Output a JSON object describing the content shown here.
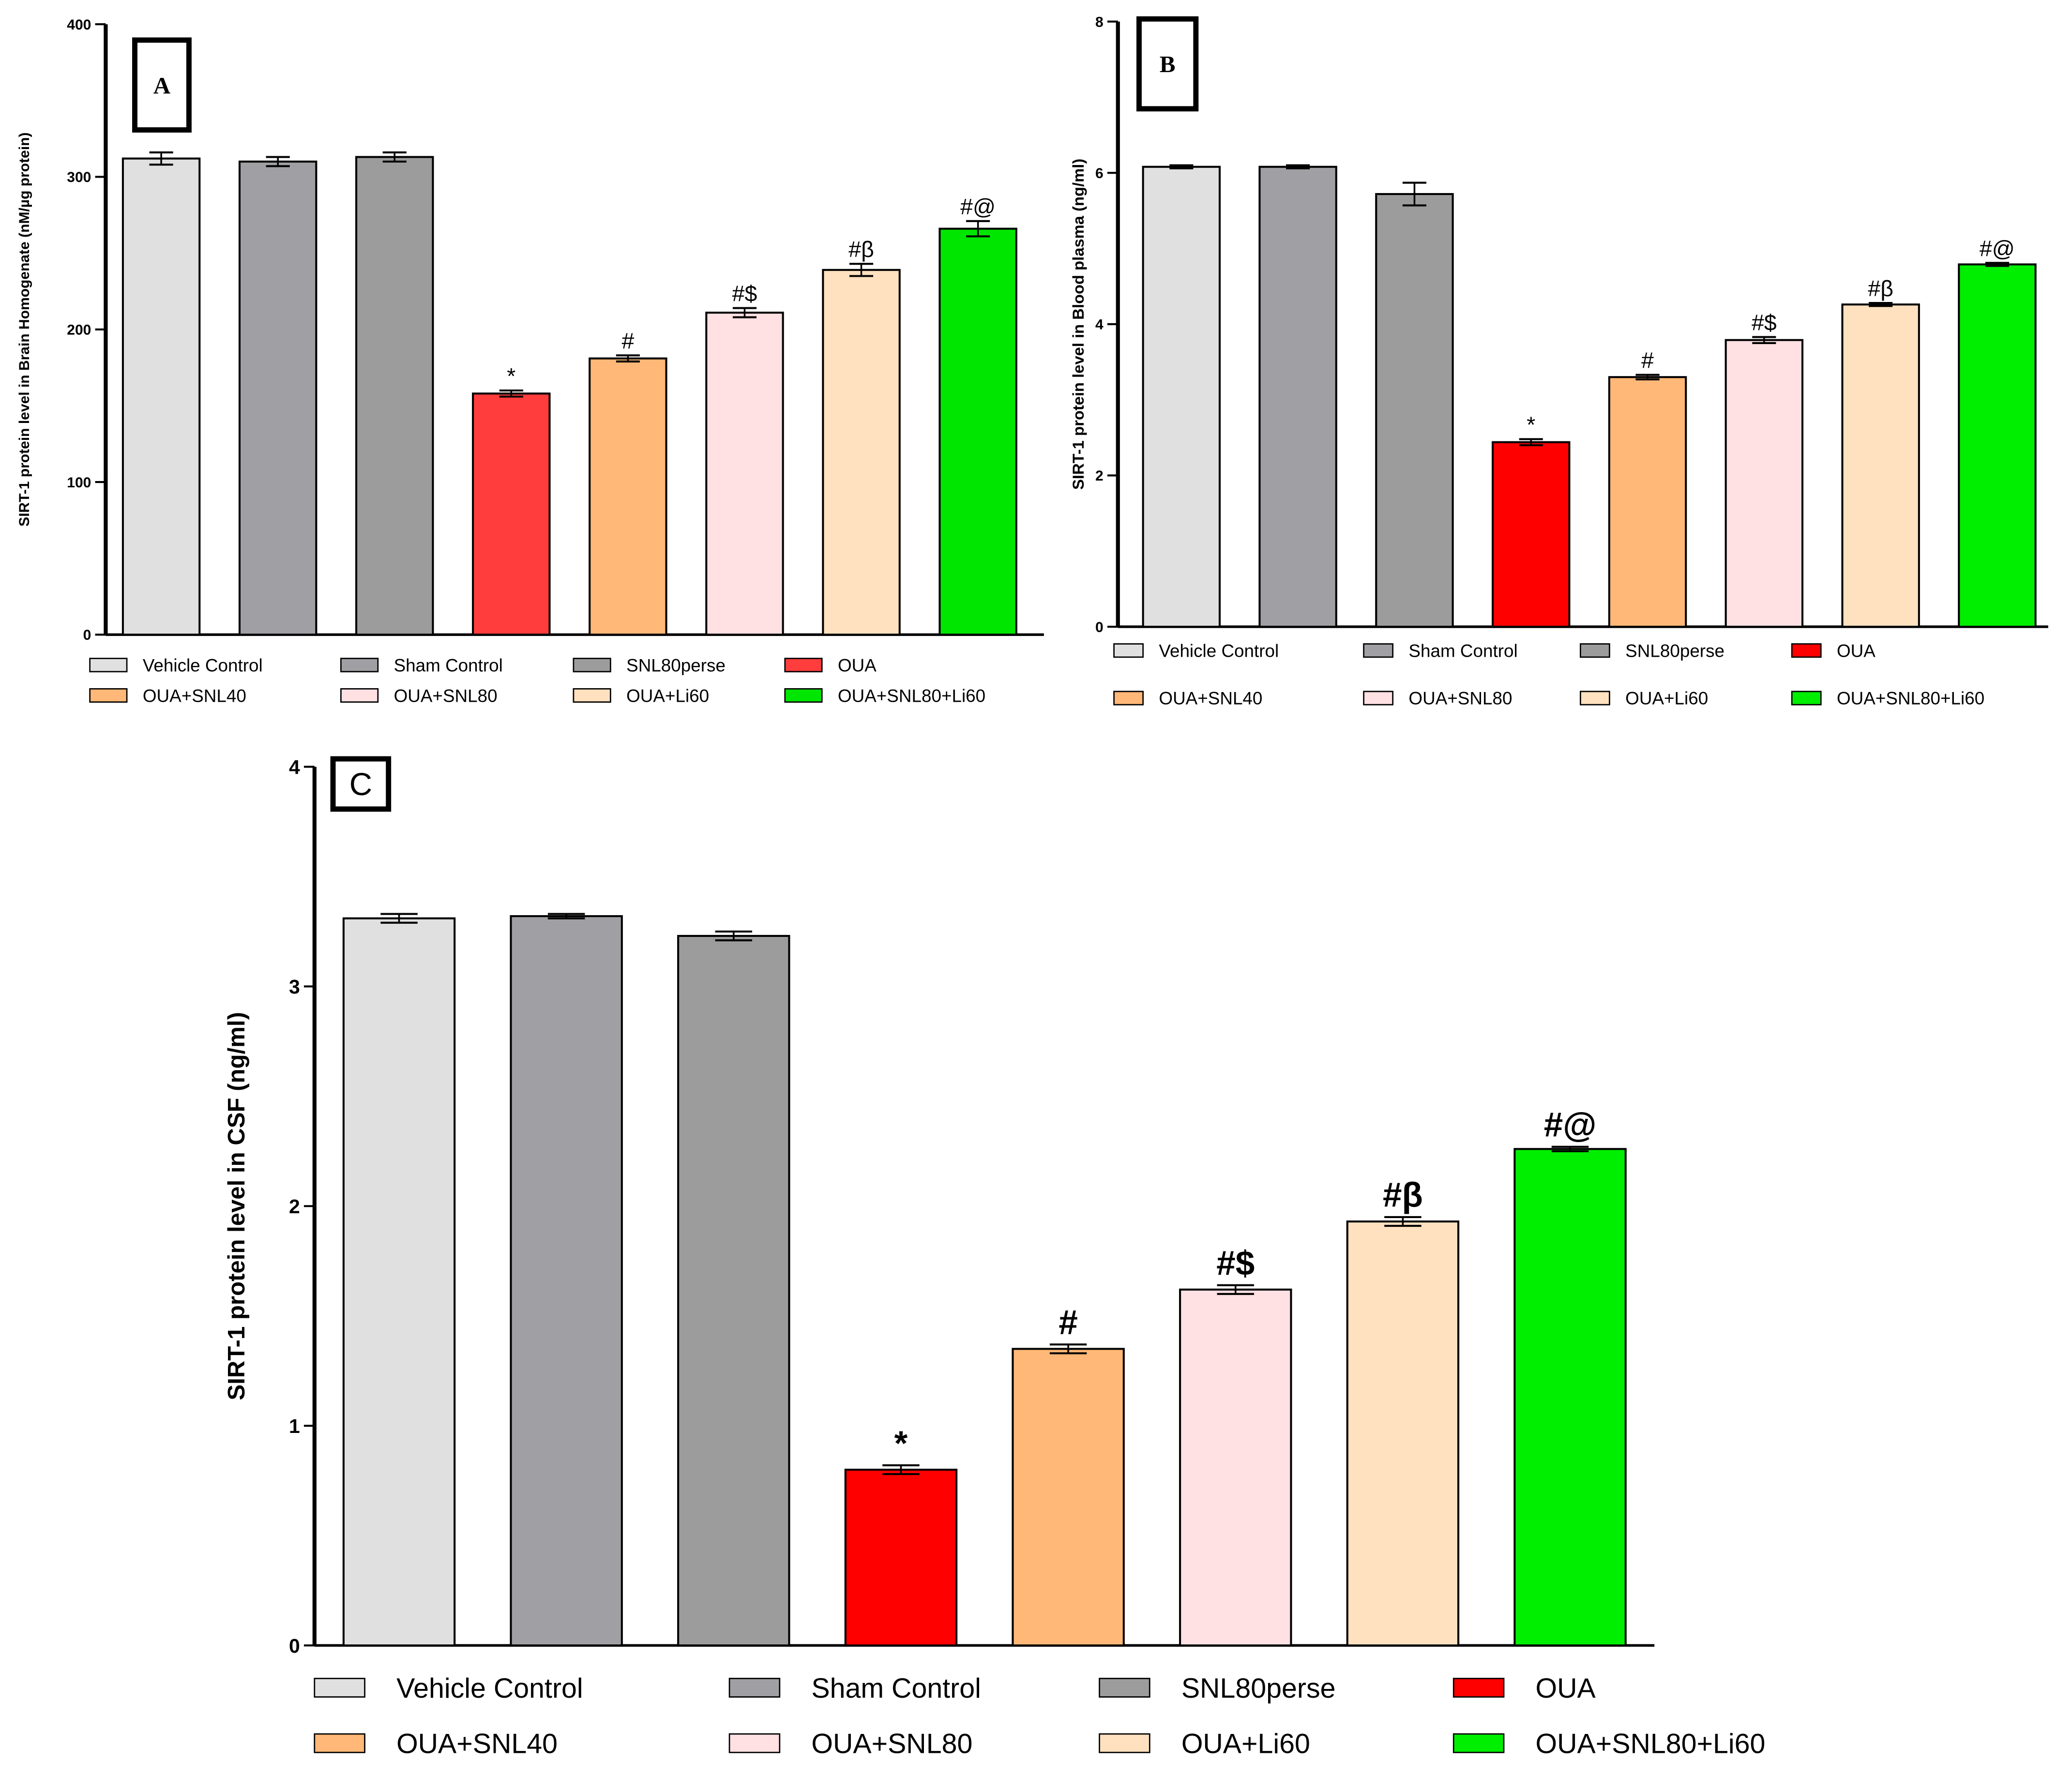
{
  "chart_data": [
    {
      "type": "bar",
      "panel_label": "A",
      "ylabel": "SIRT-1 protein level in Brain Homogenate (nM/µg protein)",
      "ylim": [
        0,
        400
      ],
      "yticks": [
        "0",
        "100",
        "200",
        "300",
        "400"
      ],
      "categories": [
        "Vehicle Control",
        "Sham Control",
        "SNL80perse",
        "OUA",
        "OUA+SNL40",
        "OUA+SNL80",
        "OUA+Li60",
        "OUA+SNL80+Li60"
      ],
      "values": [
        312,
        310,
        313,
        158,
        181,
        211,
        239,
        266
      ],
      "errors": [
        4,
        3,
        3,
        2,
        2,
        3,
        4,
        5
      ],
      "annotations": [
        "",
        "",
        "",
        "*",
        "#",
        "#$",
        "#β",
        "#@"
      ],
      "colors": [
        "#e0e0e0",
        "#a0a0a4",
        "#9c9c9c",
        "#ff3d3d",
        "#ffb877",
        "#ffe0e3",
        "#ffe1bf",
        "#00e600"
      ],
      "legend_position": "bottom"
    },
    {
      "type": "bar",
      "panel_label": "B",
      "ylabel": "SIRT-1 protein level in Blood plasma (ng/ml)",
      "ylim": [
        0,
        8
      ],
      "yticks": [
        "0",
        "2",
        "4",
        "6",
        "8"
      ],
      "categories": [
        "Vehicle Control",
        "Sham Control",
        "SNL80perse",
        "OUA",
        "OUA+SNL40",
        "OUA+SNL80",
        "OUA+Li60",
        "OUA+SNL80+Li60"
      ],
      "values": [
        6.08,
        6.08,
        5.72,
        2.44,
        3.3,
        3.79,
        4.26,
        4.79
      ],
      "errors": [
        0.02,
        0.02,
        0.15,
        0.04,
        0.03,
        0.04,
        0.02,
        0.02
      ],
      "annotations": [
        "",
        "",
        "",
        "*",
        "#",
        "#$",
        "#β",
        "#@"
      ],
      "colors": [
        "#e0e0e0",
        "#a0a0a4",
        "#9c9c9c",
        "#ff0000",
        "#ffb877",
        "#ffe0e3",
        "#ffe1bf",
        "#00ee00"
      ],
      "legend_position": "bottom"
    },
    {
      "type": "bar",
      "panel_label": "C",
      "ylabel": "SIRT-1 protein level in  CSF (ng/ml)",
      "ylim": [
        0,
        4
      ],
      "yticks": [
        "0",
        "1",
        "2",
        "3",
        "4"
      ],
      "categories": [
        "Vehicle Control",
        "Sham Control",
        "SNL80perse",
        "OUA",
        "OUA+SNL40",
        "OUA+SNL80",
        "OUA+Li60",
        "OUA+SNL80+Li60"
      ],
      "values": [
        3.31,
        3.32,
        3.23,
        0.8,
        1.35,
        1.62,
        1.93,
        2.26
      ],
      "errors": [
        0.02,
        0.01,
        0.02,
        0.02,
        0.02,
        0.02,
        0.02,
        0.01
      ],
      "annotations": [
        "",
        "",
        "",
        "*",
        "#",
        "#$",
        "#β",
        "#@"
      ],
      "colors": [
        "#e0e0e0",
        "#a0a0a4",
        "#9c9c9c",
        "#ff0000",
        "#ffb877",
        "#ffe0e3",
        "#ffe1bf",
        "#00ee00"
      ],
      "legend_position": "bottom"
    }
  ]
}
